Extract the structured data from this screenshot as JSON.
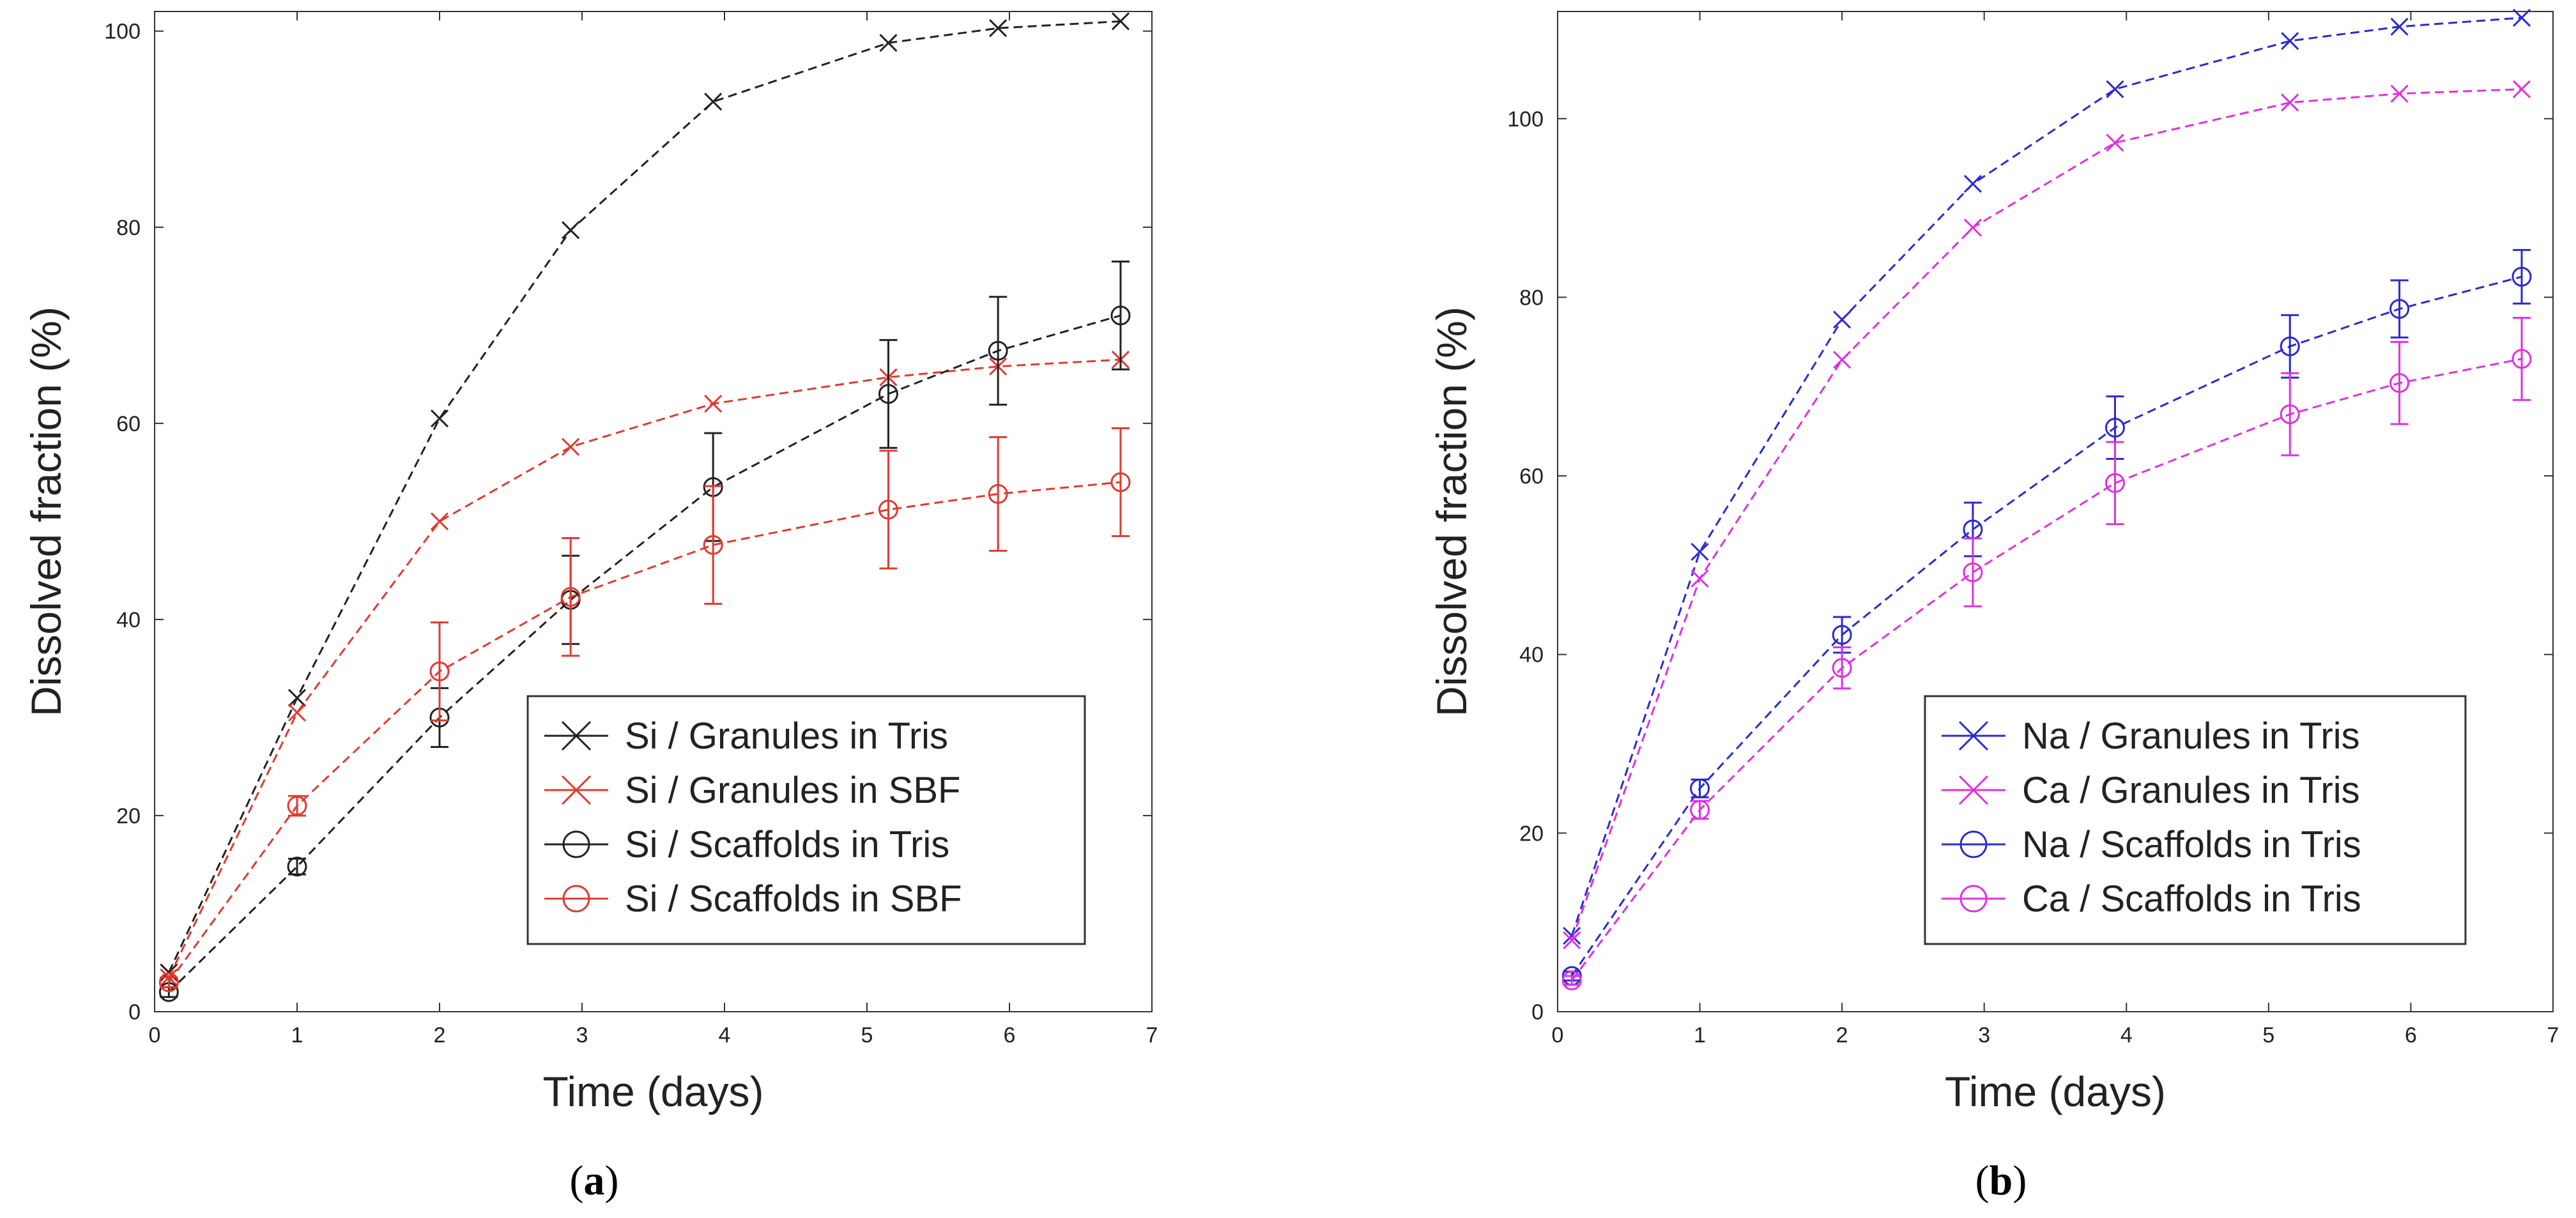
{
  "chart_data": [
    {
      "type": "line",
      "panel": "a",
      "caption_open": "(",
      "caption_letter": "a",
      "caption_close": ")",
      "xlabel": "Time (days)",
      "ylabel": "Dissolved fraction (%)",
      "xlim": [
        0,
        7
      ],
      "ylim": [
        0,
        102
      ],
      "xticks": [
        0,
        1,
        2,
        3,
        4,
        5,
        6,
        7
      ],
      "yticks": [
        0,
        20,
        40,
        60,
        80,
        100
      ],
      "grid": false,
      "legend_position": "lower-right",
      "series": [
        {
          "name": "Si / Granules in Tris",
          "color": "#222222",
          "marker": "x",
          "x": [
            0.1,
            1.0,
            2.0,
            2.92,
            3.92,
            5.15,
            5.92,
            6.78
          ],
          "y": [
            4,
            32,
            60.5,
            79.7,
            92.8,
            98.8,
            100.3,
            101
          ],
          "err": null
        },
        {
          "name": "Si / Granules in SBF",
          "color": "#e03a30",
          "marker": "x",
          "x": [
            0.1,
            1.0,
            2.0,
            2.92,
            3.92,
            5.15,
            5.92,
            6.78
          ],
          "y": [
            3.5,
            30.5,
            50,
            57.6,
            62,
            64.7,
            65.8,
            66.5
          ],
          "err": null
        },
        {
          "name": "Si / Scaffolds in Tris",
          "color": "#222222",
          "marker": "o",
          "x": [
            0.1,
            1.0,
            2.0,
            2.92,
            3.92,
            5.15,
            5.92,
            6.78
          ],
          "y": [
            2,
            14.8,
            30,
            42,
            53.5,
            63,
            67.4,
            71
          ],
          "err": [
            0.5,
            0.8,
            3,
            4.5,
            5.5,
            5.5,
            5.5,
            5.5
          ]
        },
        {
          "name": "Si / Scaffolds in SBF",
          "color": "#e03a30",
          "marker": "o",
          "x": [
            0.1,
            1.0,
            2.0,
            2.92,
            3.92,
            5.15,
            5.92,
            6.78
          ],
          "y": [
            3,
            21,
            34.7,
            42.3,
            47.6,
            51.2,
            52.8,
            54
          ],
          "err": [
            0.5,
            1,
            5,
            6,
            6,
            6,
            5.8,
            5.5
          ]
        }
      ]
    },
    {
      "type": "line",
      "panel": "b",
      "caption_open": "(",
      "caption_letter": "b",
      "caption_close": ")",
      "xlabel": "Time (days)",
      "ylabel": "Dissolved fraction (%)",
      "xlim": [
        0,
        7
      ],
      "ylim": [
        0,
        112
      ],
      "xticks": [
        0,
        1,
        2,
        3,
        4,
        5,
        6,
        7
      ],
      "yticks": [
        0,
        20,
        40,
        60,
        80,
        100
      ],
      "grid": false,
      "legend_position": "lower-right",
      "series": [
        {
          "name": "Na / Granules in Tris",
          "color": "#2a2ad0",
          "marker": "x",
          "x": [
            0.1,
            1.0,
            2.0,
            2.92,
            3.92,
            5.15,
            5.92,
            6.78
          ],
          "y": [
            8.5,
            51.5,
            77.5,
            92.7,
            103.3,
            108.7,
            110.3,
            111.3
          ],
          "err": null
        },
        {
          "name": "Ca / Granules in Tris",
          "color": "#e030e0",
          "marker": "x",
          "x": [
            0.1,
            1.0,
            2.0,
            2.92,
            3.92,
            5.15,
            5.92,
            6.78
          ],
          "y": [
            8,
            48.5,
            73,
            87.8,
            97.3,
            101.8,
            102.8,
            103.3
          ],
          "err": null
        },
        {
          "name": "Na / Scaffolds in Tris",
          "color": "#2a2ad0",
          "marker": "o",
          "x": [
            0.1,
            1.0,
            2.0,
            2.92,
            3.92,
            5.15,
            5.92,
            6.78
          ],
          "y": [
            4,
            25,
            42.2,
            54,
            65.4,
            74.5,
            78.7,
            82.3
          ],
          "err": [
            0.5,
            1,
            2,
            3,
            3.5,
            3.5,
            3.2,
            3
          ]
        },
        {
          "name": "Ca / Scaffolds in Tris",
          "color": "#e030e0",
          "marker": "o",
          "x": [
            0.1,
            1.0,
            2.0,
            2.92,
            3.92,
            5.15,
            5.92,
            6.78
          ],
          "y": [
            3.5,
            22.6,
            38.5,
            49.2,
            59.2,
            66.9,
            70.4,
            73.1
          ],
          "err": [
            0.5,
            1,
            2.3,
            3.8,
            4.6,
            4.6,
            4.6,
            4.6
          ]
        }
      ]
    }
  ]
}
